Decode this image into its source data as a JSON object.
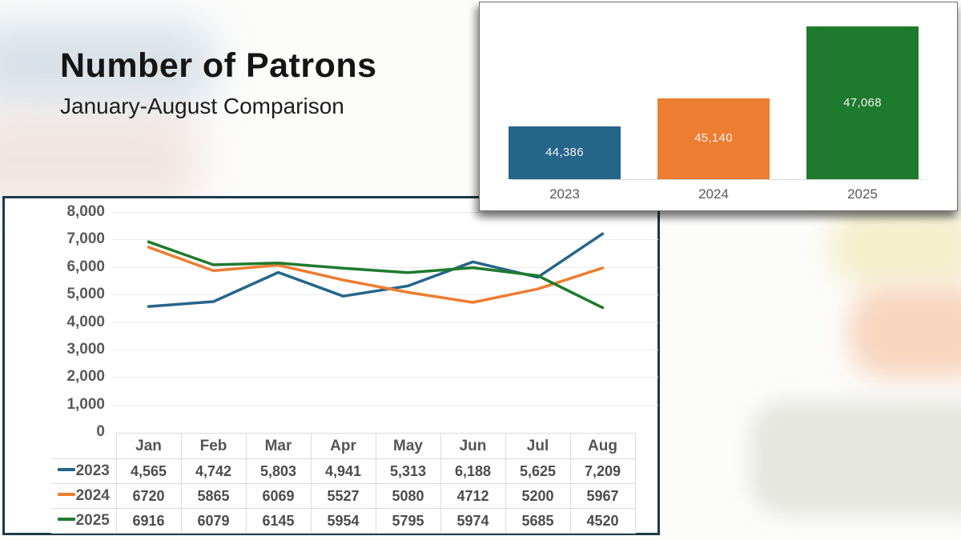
{
  "slide": {
    "title": "Number of Patrons",
    "subtitle": "January-August Comparison"
  },
  "chart_data": [
    {
      "type": "bar",
      "title": "Total patrons per year",
      "categories": [
        "2023",
        "2024",
        "2025"
      ],
      "values": [
        44386,
        45140,
        47068
      ],
      "data_labels": [
        "44,386",
        "45,140",
        "47,068"
      ],
      "colors": [
        "#26658a",
        "#ed7d31",
        "#1e7a2d"
      ],
      "ylim": [
        42960,
        47068
      ],
      "axis_visible": false,
      "label_position": "inside-center",
      "grid": false
    },
    {
      "type": "line",
      "title": "Patrons by month",
      "categories": [
        "Jan",
        "Feb",
        "Mar",
        "Apr",
        "May",
        "Jun",
        "Jul",
        "Aug"
      ],
      "series": [
        {
          "name": "2023",
          "color": "#26658a",
          "values": [
            4565,
            4742,
            5803,
            4941,
            5313,
            6188,
            5625,
            7209
          ],
          "display": [
            "4,565",
            "4,742",
            "5,803",
            "4,941",
            "5,313",
            "6,188",
            "5,625",
            "7,209"
          ]
        },
        {
          "name": "2024",
          "color": "#ed7d31",
          "values": [
            6720,
            5865,
            6069,
            5527,
            5080,
            4712,
            5200,
            5967
          ],
          "display": [
            "6720",
            "5865",
            "6069",
            "5527",
            "5080",
            "4712",
            "5200",
            "5967"
          ]
        },
        {
          "name": "2025",
          "color": "#1e7a2d",
          "values": [
            6916,
            6079,
            6145,
            5954,
            5795,
            5974,
            5685,
            4520
          ],
          "display": [
            "6916",
            "6079",
            "6145",
            "5954",
            "5795",
            "5974",
            "5685",
            "4520"
          ]
        }
      ],
      "ylim": [
        0,
        8000
      ],
      "ytick_labels": [
        "8,000",
        "7,000",
        "6,000",
        "5,000",
        "4,000",
        "3,000",
        "2,000",
        "1,000",
        "0"
      ],
      "ytick_step": 1000,
      "grid": true,
      "legend_position": "table-row-headers"
    }
  ]
}
